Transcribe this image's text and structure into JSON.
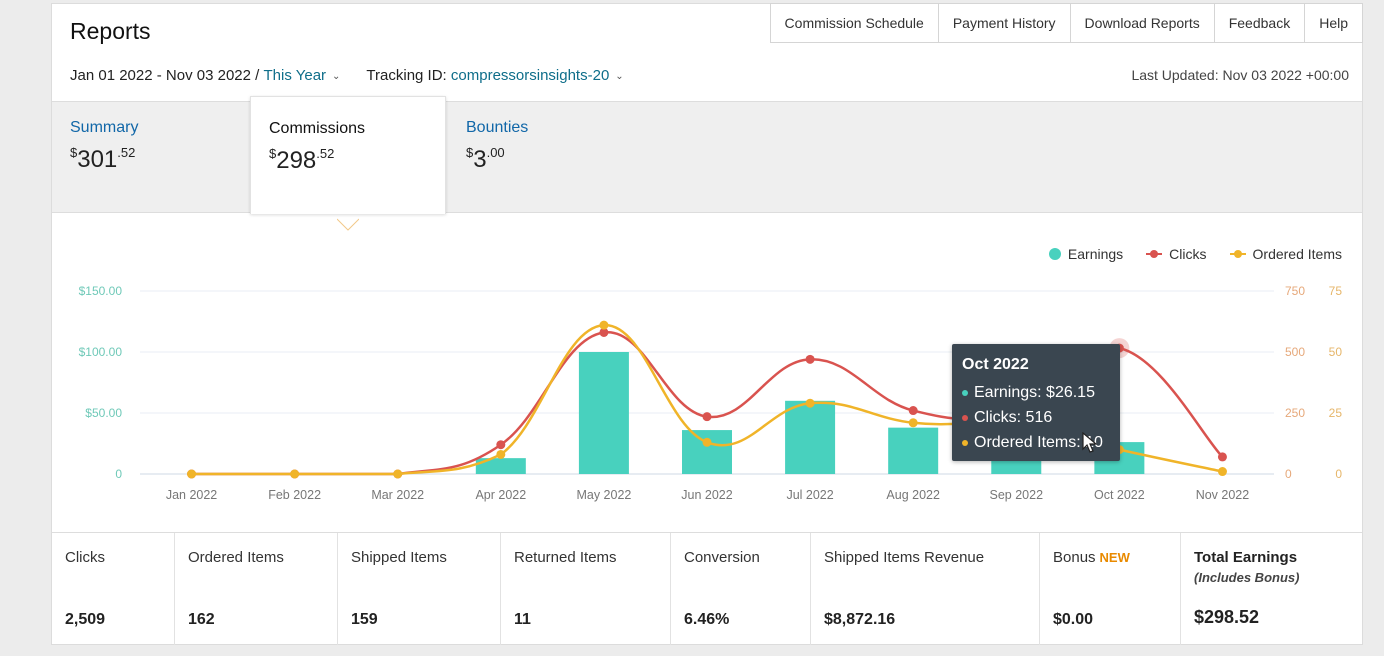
{
  "header": {
    "title": "Reports",
    "nav": [
      "Commission Schedule",
      "Payment History",
      "Download Reports",
      "Feedback",
      "Help"
    ]
  },
  "filters": {
    "date_range": "Jan 01 2022 - Nov 03 2022",
    "separator": " / ",
    "period": "This Year",
    "tracking_label": "Tracking ID: ",
    "tracking_id": "compressorsinsights-20"
  },
  "last_updated": "Last Updated: Nov 03 2022 +00:00",
  "tabs": [
    {
      "label": "Summary",
      "currency": "$",
      "whole": "301",
      "cents": ".52"
    },
    {
      "label": "Commissions",
      "currency": "$",
      "whole": "298",
      "cents": ".52"
    },
    {
      "label": "Bounties",
      "currency": "$",
      "whole": "3",
      "cents": ".00"
    }
  ],
  "chart_data": {
    "type": "bar",
    "categories": [
      "Jan 2022",
      "Feb 2022",
      "Mar 2022",
      "Apr 2022",
      "May 2022",
      "Jun 2022",
      "Jul 2022",
      "Aug 2022",
      "Sep 2022",
      "Oct 2022",
      "Nov 2022"
    ],
    "series": [
      {
        "name": "Earnings",
        "type": "bar",
        "axis": "left",
        "color": "#48d1be",
        "values": [
          0,
          0,
          0,
          13,
          100,
          36,
          60,
          38,
          20,
          26.15,
          0
        ]
      },
      {
        "name": "Clicks",
        "type": "line",
        "axis": "right1",
        "color": "#d9534f",
        "values": [
          0,
          0,
          0,
          120,
          580,
          235,
          470,
          260,
          260,
          516,
          70
        ]
      },
      {
        "name": "Ordered Items",
        "type": "line",
        "axis": "right2",
        "color": "#f0b429",
        "values": [
          0,
          0,
          0,
          8,
          61,
          13,
          29,
          21,
          20,
          10,
          1
        ]
      }
    ],
    "left_axis": {
      "ticks": [
        "0",
        "$50.00",
        "$100.00",
        "$150.00"
      ],
      "ylim": [
        0,
        150
      ]
    },
    "right_axis_1": {
      "ticks": [
        "0",
        "250",
        "500",
        "750"
      ],
      "ylim": [
        0,
        750
      ]
    },
    "right_axis_2": {
      "ticks": [
        "0",
        "25",
        "50",
        "75"
      ],
      "ylim": [
        0,
        75
      ]
    },
    "legend": [
      "Earnings",
      "Clicks",
      "Ordered Items"
    ],
    "legend_position": "top-right",
    "grid": true
  },
  "tooltip": {
    "title": "Oct 2022",
    "rows": [
      "Earnings: $26.15",
      "Clicks: 516",
      "Ordered Items: 10"
    ]
  },
  "stats": [
    {
      "label": "Clicks",
      "value": "2,509"
    },
    {
      "label": "Ordered Items",
      "value": "162"
    },
    {
      "label": "Shipped Items",
      "value": "159"
    },
    {
      "label": "Returned Items",
      "value": "11"
    },
    {
      "label": "Conversion",
      "value": "6.46%"
    },
    {
      "label": "Shipped Items Revenue",
      "value": "$8,872.16"
    },
    {
      "label": "Bonus",
      "badge": "NEW",
      "value": "$0.00"
    },
    {
      "label": "Total Earnings",
      "sub": "(Includes Bonus)",
      "value": "$298.52"
    }
  ]
}
